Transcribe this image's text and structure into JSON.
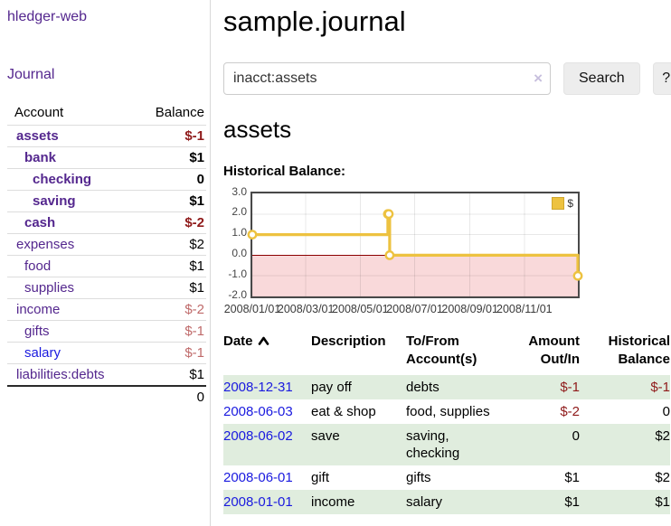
{
  "colors": {
    "link_purple": "#54278e",
    "link_blue": "#1a1adf",
    "negative_strong": "#8f1a1a",
    "negative_soft": "#bf6a6a",
    "row_stripe_green": "#e0edde",
    "chart_line_gold": "#EDC240",
    "chart_negative_region": "#f9d9da",
    "chart_zero_line": "#8b0000"
  },
  "app": {
    "title": "hledger-web"
  },
  "sidebar": {
    "journal_label": "Journal",
    "accounts_table": {
      "account_header": "Account",
      "balance_header": "Balance",
      "rows": [
        {
          "name": "assets",
          "balance": "$-1",
          "level": 1,
          "bold": true,
          "tone": "neg-strong"
        },
        {
          "name": "bank",
          "balance": "$1",
          "level": 2,
          "bold": true
        },
        {
          "name": "checking",
          "balance": "0",
          "level": 3,
          "bold": true
        },
        {
          "name": "saving",
          "balance": "$1",
          "level": 3,
          "bold": true
        },
        {
          "name": "cash",
          "balance": "$-2",
          "level": 2,
          "bold": true,
          "tone": "neg-strong"
        },
        {
          "name": "expenses",
          "balance": "$2",
          "level": 1
        },
        {
          "name": "food",
          "balance": "$1",
          "level": 2
        },
        {
          "name": "supplies",
          "balance": "$1",
          "level": 2
        },
        {
          "name": "income",
          "balance": "$-2",
          "level": 1,
          "tone": "neg-soft"
        },
        {
          "name": "gifts",
          "balance": "$-1",
          "level": 2,
          "tone": "neg-soft"
        },
        {
          "name": "salary",
          "balance": "$-1",
          "level": 2,
          "blue": true,
          "tone": "neg-soft"
        },
        {
          "name": "liabilities:debts",
          "balance": "$1",
          "level": 1
        }
      ],
      "total": "0"
    }
  },
  "main": {
    "title": "sample.journal",
    "search": {
      "value": "inacct:assets",
      "clear_icon": "×",
      "button_label": "Search",
      "help_label": "?"
    },
    "account_heading": "assets",
    "chart_label": "Historical Balance:"
  },
  "chart_data": {
    "type": "line",
    "line_style": "step",
    "title": "Historical Balance",
    "series": [
      {
        "name": "$",
        "color": "#EDC240",
        "points": [
          [
            "2008-01-01",
            1
          ],
          [
            "2008-06-01",
            2
          ],
          [
            "2008-06-02",
            2
          ],
          [
            "2008-06-03",
            0
          ],
          [
            "2008-12-31",
            -1
          ]
        ]
      }
    ],
    "ylim": [
      -2,
      3
    ],
    "yticks": [
      "3.0",
      "2.0",
      "1.0",
      "0.0",
      "-1.0",
      "-2.0"
    ],
    "xlim": [
      "2008-01-01",
      "2008-12-31"
    ],
    "xtick_labels": [
      "2008/01/01",
      "2008/03/01",
      "2008/05/01",
      "2008/07/01",
      "2008/09/01",
      "2008/11/01"
    ],
    "grid": true,
    "legend_position": "top-right",
    "negative_region_below": 0
  },
  "register": {
    "headers": [
      {
        "key": "date",
        "lines": [
          "Date"
        ],
        "align": "left",
        "sort_indicator": "ascending"
      },
      {
        "key": "description",
        "lines": [
          "Description"
        ],
        "align": "left"
      },
      {
        "key": "accounts",
        "lines": [
          "To/From",
          "Account(s)"
        ],
        "align": "left"
      },
      {
        "key": "amount",
        "lines": [
          "Amount",
          "Out/In"
        ],
        "align": "right"
      },
      {
        "key": "balance",
        "lines": [
          "Historical",
          "Balance"
        ],
        "align": "right"
      }
    ],
    "rows": [
      {
        "date": "2008-12-31",
        "description": "pay off",
        "accounts": [
          "debts"
        ],
        "amount": "$-1",
        "amount_negative": true,
        "balance": "$-1",
        "balance_negative": true
      },
      {
        "date": "2008-06-03",
        "description": "eat & shop",
        "accounts": [
          "food, supplies"
        ],
        "amount": "$-2",
        "amount_negative": true,
        "balance": "0",
        "balance_negative": false
      },
      {
        "date": "2008-06-02",
        "description": "save",
        "accounts": [
          "saving,",
          "checking"
        ],
        "amount": "0",
        "amount_negative": false,
        "balance": "$2",
        "balance_negative": false
      },
      {
        "date": "2008-06-01",
        "description": "gift",
        "accounts": [
          "gifts"
        ],
        "amount": "$1",
        "amount_negative": false,
        "balance": "$2",
        "balance_negative": false
      },
      {
        "date": "2008-01-01",
        "description": "income",
        "accounts": [
          "salary"
        ],
        "amount": "$1",
        "amount_negative": false,
        "balance": "$1",
        "balance_negative": false
      }
    ]
  }
}
